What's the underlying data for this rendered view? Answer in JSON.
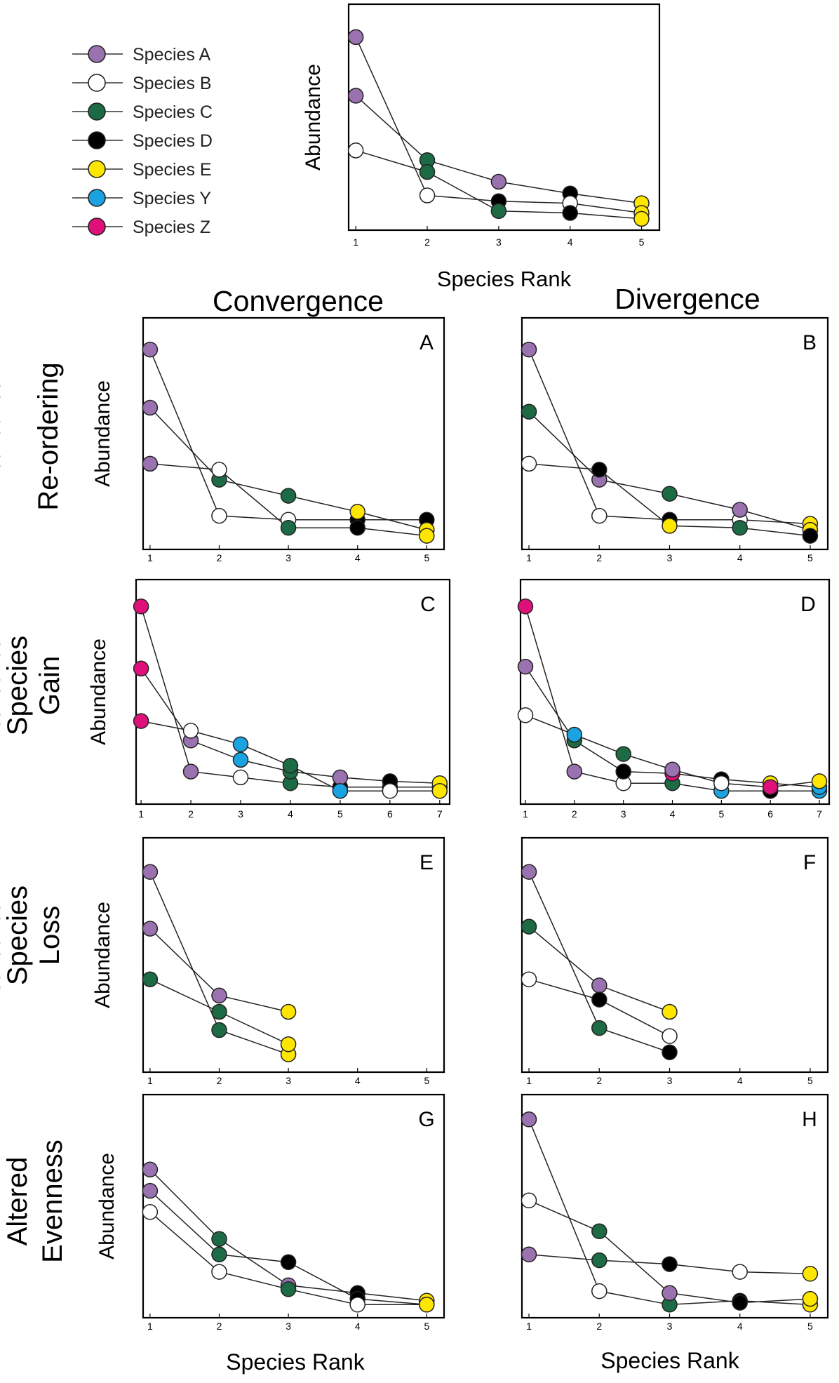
{
  "legend": {
    "items": [
      {
        "key": "A",
        "label": "Species A",
        "color": "#9b72b0"
      },
      {
        "key": "B",
        "label": "Species B",
        "color": "#ffffff"
      },
      {
        "key": "C",
        "label": "Species C",
        "color": "#1d6b45"
      },
      {
        "key": "D",
        "label": "Species D",
        "color": "#000000"
      },
      {
        "key": "E",
        "label": "Species E",
        "color": "#ffe600"
      },
      {
        "key": "Y",
        "label": "Species Y",
        "color": "#1aa3e0"
      },
      {
        "key": "Z",
        "label": "Species Z",
        "color": "#e0107a"
      }
    ]
  },
  "column_titles": [
    "Convergence",
    "Divergence"
  ],
  "row_titles": [
    [
      "Re-ordering"
    ],
    [
      "Species",
      "Gain"
    ],
    [
      "Species",
      "Loss"
    ],
    [
      "Altered",
      "Evenness"
    ]
  ],
  "bottom_xlabels": [
    "Species Rank",
    "Species Rank"
  ],
  "chart_data": [
    {
      "id": "reference",
      "type": "line",
      "panel_label": "",
      "xlabel": "Species Rank",
      "ylabel": "Abundance",
      "x_ticks": [
        1,
        2,
        3,
        4,
        5
      ],
      "xlim": [
        0.9,
        5.25
      ],
      "ylim": [
        0,
        1
      ],
      "series": [
        {
          "points": [
            [
              1,
              0.63,
              "A"
            ],
            [
              2,
              0.3,
              "C"
            ],
            [
              3,
              0.19,
              "A"
            ],
            [
              4,
              0.13,
              "D"
            ],
            [
              5,
              0.08,
              "E"
            ]
          ]
        },
        {
          "points": [
            [
              1,
              0.93,
              "A"
            ],
            [
              2,
              0.12,
              "B"
            ],
            [
              3,
              0.09,
              "D"
            ],
            [
              4,
              0.08,
              "B"
            ],
            [
              5,
              0.03,
              "E"
            ]
          ]
        },
        {
          "points": [
            [
              1,
              0.35,
              "B"
            ],
            [
              2,
              0.24,
              "C"
            ],
            [
              3,
              0.04,
              "C"
            ],
            [
              4,
              0.03,
              "D"
            ],
            [
              5,
              0.0,
              "E"
            ]
          ]
        }
      ]
    },
    {
      "id": "A",
      "type": "line",
      "panel_label": "A",
      "xlabel": "",
      "ylabel": "Abundance",
      "x_ticks": [
        1,
        2,
        3,
        4,
        5
      ],
      "xlim": [
        0.9,
        5.25
      ],
      "ylim": [
        0,
        1
      ],
      "series": [
        {
          "points": [
            [
              1,
              0.94,
              "A"
            ],
            [
              2,
              0.11,
              "B"
            ],
            [
              3,
              0.09,
              "B"
            ],
            [
              4,
              0.09,
              "D"
            ],
            [
              5,
              0.09,
              "D"
            ]
          ]
        },
        {
          "points": [
            [
              1,
              0.65,
              "A"
            ],
            [
              2,
              0.29,
              "C"
            ],
            [
              3,
              0.21,
              "C"
            ],
            [
              4,
              0.13,
              "E"
            ],
            [
              5,
              0.04,
              "E"
            ]
          ]
        },
        {
          "points": [
            [
              1,
              0.37,
              "A"
            ],
            [
              2,
              0.34,
              "B"
            ],
            [
              3,
              0.05,
              "C"
            ],
            [
              4,
              0.05,
              "D"
            ],
            [
              5,
              0.01,
              "E"
            ]
          ]
        }
      ]
    },
    {
      "id": "B",
      "type": "line",
      "panel_label": "B",
      "xlabel": "",
      "ylabel": "Abundance",
      "x_ticks": [
        1,
        2,
        3,
        4,
        5
      ],
      "xlim": [
        0.9,
        5.25
      ],
      "ylim": [
        0,
        1
      ],
      "series": [
        {
          "points": [
            [
              1,
              0.94,
              "A"
            ],
            [
              2,
              0.11,
              "B"
            ],
            [
              3,
              0.09,
              "D"
            ],
            [
              4,
              0.09,
              "B"
            ],
            [
              5,
              0.07,
              "E"
            ]
          ]
        },
        {
          "points": [
            [
              1,
              0.63,
              "C"
            ],
            [
              2,
              0.29,
              "A"
            ],
            [
              3,
              0.22,
              "C"
            ],
            [
              4,
              0.14,
              "A"
            ],
            [
              5,
              0.04,
              "E"
            ]
          ]
        },
        {
          "points": [
            [
              1,
              0.37,
              "B"
            ],
            [
              2,
              0.34,
              "D"
            ],
            [
              3,
              0.06,
              "E"
            ],
            [
              4,
              0.05,
              "C"
            ],
            [
              5,
              0.01,
              "D"
            ]
          ]
        }
      ]
    },
    {
      "id": "C",
      "type": "line",
      "panel_label": "C",
      "xlabel": "",
      "ylabel": "Abundance",
      "x_ticks": [
        1,
        2,
        3,
        4,
        5,
        6,
        7
      ],
      "xlim": [
        0.9,
        7.2
      ],
      "ylim": [
        0,
        1
      ],
      "series": [
        {
          "points": [
            [
              1,
              0.96,
              "Z"
            ],
            [
              2,
              0.11,
              "A"
            ],
            [
              3,
              0.08,
              "B"
            ],
            [
              4,
              0.05,
              "C"
            ],
            [
              5,
              0.03,
              "D"
            ],
            [
              6,
              0.03,
              "D"
            ],
            [
              7,
              0.03,
              "E"
            ]
          ]
        },
        {
          "points": [
            [
              1,
              0.64,
              "Z"
            ],
            [
              2,
              0.27,
              "A"
            ],
            [
              3,
              0.17,
              "Y"
            ],
            [
              4,
              0.11,
              "C"
            ],
            [
              5,
              0.08,
              "A"
            ],
            [
              6,
              0.06,
              "D"
            ],
            [
              7,
              0.05,
              "E"
            ]
          ]
        },
        {
          "points": [
            [
              1,
              0.37,
              "Z"
            ],
            [
              2,
              0.32,
              "B"
            ],
            [
              3,
              0.25,
              "Y"
            ],
            [
              4,
              0.14,
              "C"
            ],
            [
              5,
              0.01,
              "Y"
            ],
            [
              6,
              0.01,
              "B"
            ],
            [
              7,
              0.01,
              "E"
            ]
          ]
        }
      ]
    },
    {
      "id": "D",
      "type": "line",
      "panel_label": "D",
      "xlabel": "",
      "ylabel": "Abundance",
      "x_ticks": [
        1,
        2,
        3,
        4,
        5,
        6,
        7
      ],
      "xlim": [
        0.9,
        7.2
      ],
      "ylim": [
        0,
        1
      ],
      "series": [
        {
          "points": [
            [
              1,
              0.96,
              "Z"
            ],
            [
              2,
              0.11,
              "A"
            ],
            [
              3,
              0.05,
              "B"
            ],
            [
              4,
              0.05,
              "C"
            ],
            [
              5,
              0.01,
              "Y"
            ],
            [
              6,
              0.01,
              "D"
            ],
            [
              7,
              0.01,
              "Y"
            ]
          ]
        },
        {
          "points": [
            [
              1,
              0.65,
              "A"
            ],
            [
              2,
              0.27,
              "C"
            ],
            [
              3,
              0.11,
              "D"
            ],
            [
              4,
              0.1,
              "Z"
            ],
            [
              5,
              0.07,
              "D"
            ],
            [
              6,
              0.05,
              "E"
            ],
            [
              7,
              0.03,
              "Y"
            ]
          ]
        },
        {
          "points": [
            [
              1,
              0.4,
              "B"
            ],
            [
              2,
              0.3,
              "Y"
            ],
            [
              3,
              0.2,
              "C"
            ],
            [
              4,
              0.12,
              "A"
            ],
            [
              5,
              0.05,
              "B"
            ],
            [
              6,
              0.03,
              "Z"
            ],
            [
              7,
              0.06,
              "E"
            ]
          ]
        }
      ]
    },
    {
      "id": "E",
      "type": "line",
      "panel_label": "E",
      "xlabel": "",
      "ylabel": "Abundance",
      "x_ticks": [
        1,
        2,
        3,
        4,
        5
      ],
      "xlim": [
        0.9,
        5.25
      ],
      "ylim": [
        0,
        1
      ],
      "series": [
        {
          "points": [
            [
              1,
              0.93,
              "A"
            ],
            [
              2,
              0.15,
              "C"
            ],
            [
              3,
              0.03,
              "E"
            ]
          ]
        },
        {
          "points": [
            [
              1,
              0.65,
              "A"
            ],
            [
              2,
              0.32,
              "A"
            ],
            [
              3,
              0.24,
              "E"
            ]
          ]
        },
        {
          "points": [
            [
              1,
              0.4,
              "C"
            ],
            [
              2,
              0.24,
              "C"
            ],
            [
              3,
              0.08,
              "E"
            ]
          ]
        }
      ]
    },
    {
      "id": "F",
      "type": "line",
      "panel_label": "F",
      "xlabel": "",
      "ylabel": "Abundance",
      "x_ticks": [
        1,
        2,
        3,
        4,
        5
      ],
      "xlim": [
        0.9,
        5.25
      ],
      "ylim": [
        0,
        1
      ],
      "series": [
        {
          "points": [
            [
              1,
              0.93,
              "A"
            ],
            [
              2,
              0.16,
              "C"
            ],
            [
              3,
              0.04,
              "D"
            ]
          ]
        },
        {
          "points": [
            [
              1,
              0.66,
              "C"
            ],
            [
              2,
              0.37,
              "A"
            ],
            [
              3,
              0.24,
              "E"
            ]
          ]
        },
        {
          "points": [
            [
              1,
              0.4,
              "B"
            ],
            [
              2,
              0.3,
              "D"
            ],
            [
              3,
              0.12,
              "B"
            ]
          ]
        }
      ]
    },
    {
      "id": "G",
      "type": "line",
      "panel_label": "G",
      "xlabel": "",
      "ylabel": "Abundance",
      "x_ticks": [
        1,
        2,
        3,
        4,
        5
      ],
      "xlim": [
        0.9,
        5.25
      ],
      "ylim": [
        0,
        1
      ],
      "series": [
        {
          "points": [
            [
              1,
              0.71,
              "A"
            ],
            [
              2,
              0.35,
              "C"
            ],
            [
              3,
              0.11,
              "A"
            ],
            [
              4,
              0.07,
              "D"
            ],
            [
              5,
              0.03,
              "E"
            ]
          ]
        },
        {
          "points": [
            [
              1,
              0.6,
              "A"
            ],
            [
              2,
              0.27,
              "C"
            ],
            [
              3,
              0.23,
              "D"
            ],
            [
              4,
              0.04,
              "D"
            ],
            [
              5,
              0.01,
              "E"
            ]
          ]
        },
        {
          "points": [
            [
              1,
              0.49,
              "B"
            ],
            [
              2,
              0.18,
              "B"
            ],
            [
              3,
              0.09,
              "C"
            ],
            [
              4,
              0.01,
              "B"
            ],
            [
              5,
              0.01,
              "E"
            ]
          ]
        }
      ]
    },
    {
      "id": "H",
      "type": "line",
      "panel_label": "H",
      "xlabel": "",
      "ylabel": "",
      "x_ticks": [
        1,
        2,
        3,
        4,
        5
      ],
      "xlim": [
        0.9,
        5.25
      ],
      "ylim": [
        0,
        1
      ],
      "series": [
        {
          "points": [
            [
              1,
              0.97,
              "A"
            ],
            [
              2,
              0.08,
              "B"
            ],
            [
              3,
              0.01,
              "C"
            ],
            [
              4,
              0.03,
              "D"
            ],
            [
              5,
              0.01,
              "E"
            ]
          ]
        },
        {
          "points": [
            [
              1,
              0.55,
              "B"
            ],
            [
              2,
              0.39,
              "C"
            ],
            [
              3,
              0.07,
              "A"
            ],
            [
              4,
              0.02,
              "D"
            ],
            [
              5,
              0.04,
              "E"
            ]
          ]
        },
        {
          "points": [
            [
              1,
              0.27,
              "A"
            ],
            [
              2,
              0.24,
              "C"
            ],
            [
              3,
              0.22,
              "D"
            ],
            [
              4,
              0.18,
              "B"
            ],
            [
              5,
              0.17,
              "E"
            ]
          ]
        }
      ]
    }
  ]
}
